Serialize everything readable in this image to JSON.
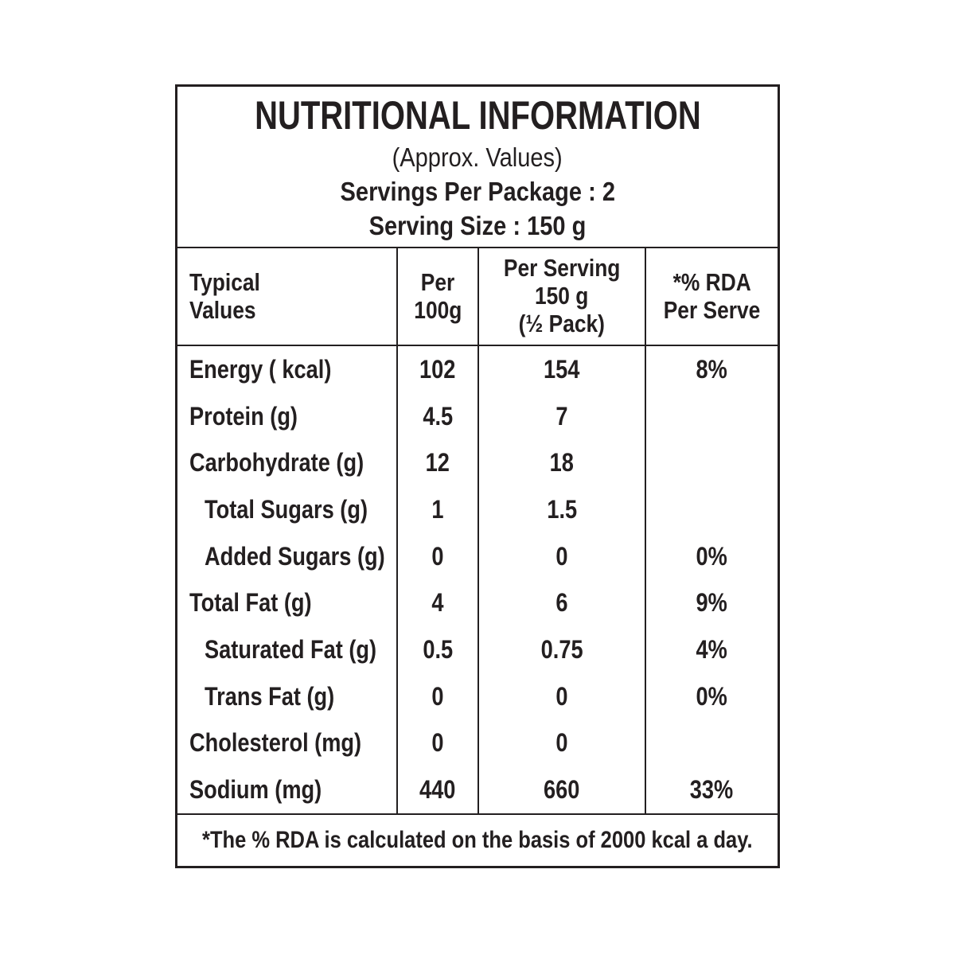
{
  "colors": {
    "text": "#231f20",
    "border": "#231f20",
    "background": "#ffffff"
  },
  "header": {
    "title": "NUTRITIONAL INFORMATION",
    "subtitle": "(Approx. Values)",
    "servings_per_package": "Servings Per Package : 2",
    "serving_size": "Serving Size : 150 g"
  },
  "columns": [
    {
      "id": "typical-values",
      "lines": [
        "Typical",
        "Values"
      ]
    },
    {
      "id": "per-100g",
      "lines": [
        "Per",
        "100g"
      ]
    },
    {
      "id": "per-serving",
      "lines": [
        "Per Serving",
        "150 g",
        "(½ Pack)"
      ]
    },
    {
      "id": "rda-per-serve",
      "lines": [
        "*% RDA",
        "Per Serve"
      ]
    }
  ],
  "rows": [
    {
      "label": "Energy ( kcal)",
      "indent": false,
      "per_100g": "102",
      "per_serving": "154",
      "rda": "8%"
    },
    {
      "label": "Protein (g)",
      "indent": false,
      "per_100g": "4.5",
      "per_serving": "7",
      "rda": ""
    },
    {
      "label": "Carbohydrate (g)",
      "indent": false,
      "per_100g": "12",
      "per_serving": "18",
      "rda": ""
    },
    {
      "label": "Total Sugars (g)",
      "indent": true,
      "per_100g": "1",
      "per_serving": "1.5",
      "rda": ""
    },
    {
      "label": "Added Sugars (g)",
      "indent": true,
      "per_100g": "0",
      "per_serving": "0",
      "rda": "0%"
    },
    {
      "label": "Total Fat (g)",
      "indent": false,
      "per_100g": "4",
      "per_serving": "6",
      "rda": "9%"
    },
    {
      "label": "Saturated Fat (g)",
      "indent": true,
      "per_100g": "0.5",
      "per_serving": "0.75",
      "rda": "4%"
    },
    {
      "label": "Trans Fat (g)",
      "indent": true,
      "per_100g": "0",
      "per_serving": "0",
      "rda": "0%"
    },
    {
      "label": "Cholesterol (mg)",
      "indent": false,
      "per_100g": "0",
      "per_serving": "0",
      "rda": ""
    },
    {
      "label": "Sodium (mg)",
      "indent": false,
      "per_100g": "440",
      "per_serving": "660",
      "rda": "33%"
    }
  ],
  "footnote": "*The % RDA is calculated on the basis of 2000 kcal a day."
}
